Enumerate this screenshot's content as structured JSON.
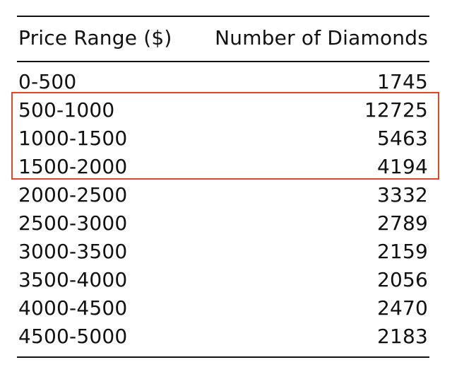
{
  "chart_data": {
    "type": "table",
    "columns": [
      "Price Range ($)",
      "Number of Diamonds"
    ],
    "rows": [
      {
        "range": "0-500",
        "count": "1745"
      },
      {
        "range": "500-1000",
        "count": "12725"
      },
      {
        "range": "1000-1500",
        "count": "5463"
      },
      {
        "range": "1500-2000",
        "count": "4194"
      },
      {
        "range": "2000-2500",
        "count": "3332"
      },
      {
        "range": "2500-3000",
        "count": "2789"
      },
      {
        "range": "3000-3500",
        "count": "2159"
      },
      {
        "range": "3500-4000",
        "count": "2056"
      },
      {
        "range": "4000-4500",
        "count": "2470"
      },
      {
        "range": "4500-5000",
        "count": "2183"
      }
    ],
    "highlighted_rows": [
      "500-1000",
      "1000-1500",
      "1500-2000"
    ],
    "highlight_color": "#e0472a"
  }
}
